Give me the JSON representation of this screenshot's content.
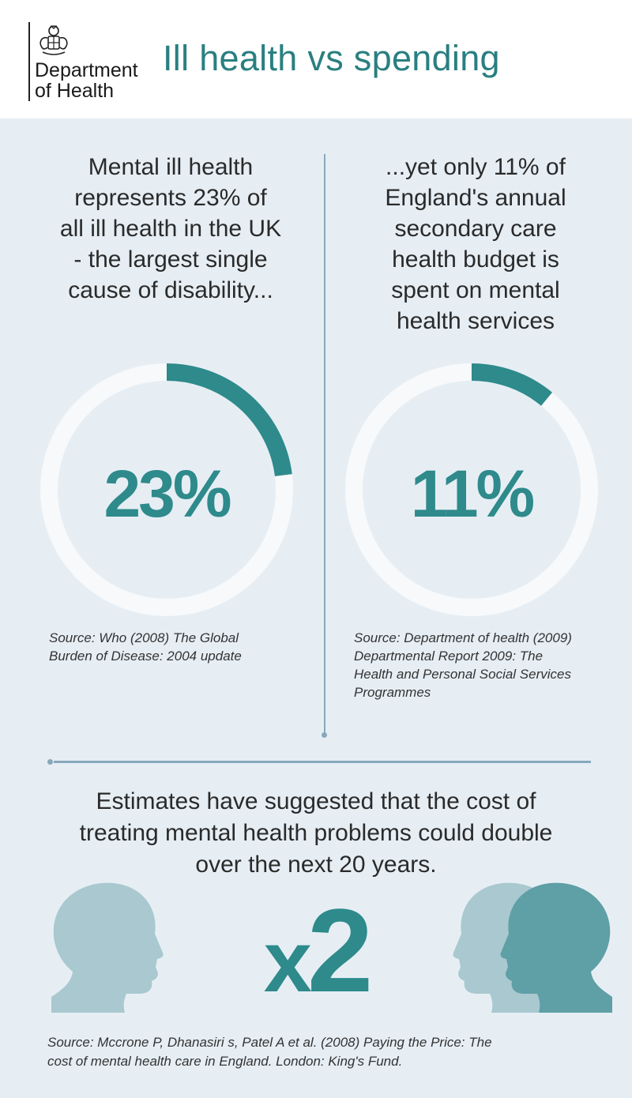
{
  "header": {
    "department": "Department\nof Health",
    "title": "Ill health vs spending",
    "crest_icon": "royal-coat-of-arms-icon"
  },
  "left": {
    "lead": "Mental ill health\nrepresents 23% of\nall ill health in the UK\n- the largest single\ncause of disability...",
    "value_label": "23%",
    "percent": 23,
    "source": "Source: Who (2008) The Global\nBurden of Disease: 2004 update"
  },
  "right": {
    "lead": "...yet only 11% of\nEngland's annual\nsecondary care\nhealth budget is\nspent on mental\nhealth services",
    "value_label": "11%",
    "percent": 11,
    "source": "Source: Department of health (2009)\nDepartmental Report 2009: The\nHealth and Personal Social Services\nProgrammes"
  },
  "bottom": {
    "estimate": "Estimates have suggested that the cost of\ntreating mental health problems could double\nover the next 20 years.",
    "multiplier_x": "x",
    "multiplier_num": "2",
    "source": "Source: Mccrone P, Dhanasiri s, Patel A et al. (2008) Paying the Price: The\ncost of mental health care in England. London: King's Fund.",
    "icons": [
      "head-profile-icon",
      "two-heads-profile-icon"
    ]
  },
  "colors": {
    "accent": "#2e8a8b",
    "title": "#2a7f80",
    "panel": "#e6eef4",
    "ring_track": "#f7f9fb",
    "head_light": "#a9c8cf",
    "head_dark": "#5f9fa6"
  }
}
